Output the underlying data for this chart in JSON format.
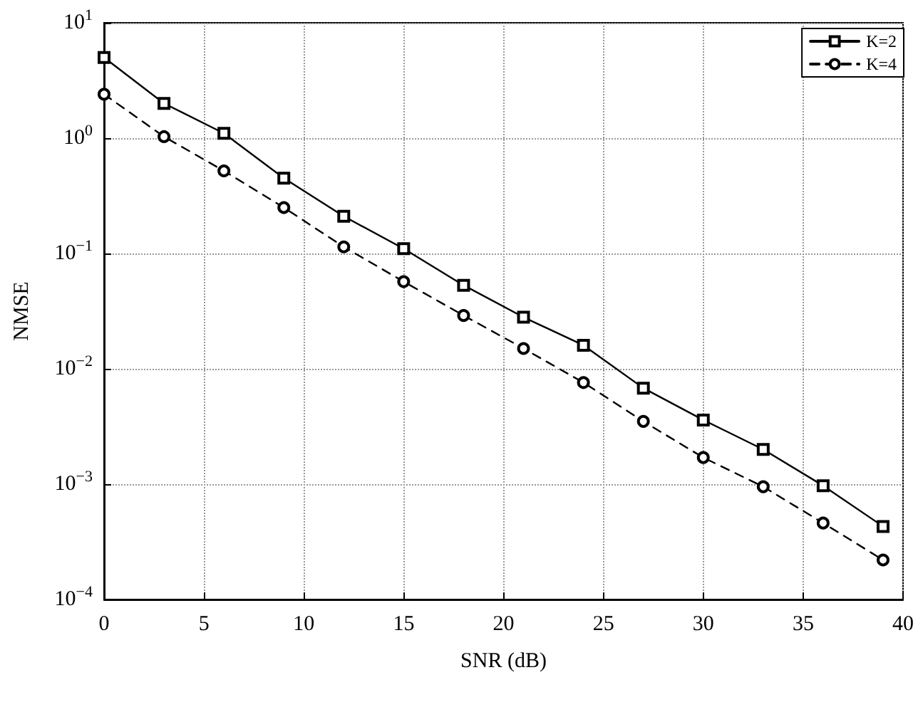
{
  "chart_data": {
    "type": "line",
    "xlabel": "SNR (dB)",
    "ylabel": "NMSE",
    "x": [
      0,
      3,
      6,
      9,
      12,
      15,
      18,
      21,
      24,
      27,
      30,
      33,
      36,
      39
    ],
    "series": [
      {
        "name": "K=2",
        "color": "#000000",
        "marker": "square",
        "line_style": "solid",
        "values": [
          5,
          2,
          1.1,
          0.45,
          0.21,
          0.11,
          0.053,
          0.028,
          0.016,
          0.0068,
          0.0036,
          0.002,
          0.00097,
          0.00043
        ]
      },
      {
        "name": "K=4",
        "color": "#000000",
        "marker": "circle",
        "line_style": "dashed",
        "values": [
          2.4,
          1.03,
          0.52,
          0.25,
          0.114,
          0.057,
          0.029,
          0.015,
          0.0076,
          0.0035,
          0.0017,
          0.00095,
          0.00046,
          0.00022
        ]
      }
    ],
    "xlim": [
      0,
      40
    ],
    "xticks": [
      0,
      5,
      10,
      15,
      20,
      25,
      30,
      35,
      40
    ],
    "ylim": [
      0.0001,
      10
    ],
    "yticks": [
      {
        "value": 0.0001,
        "label": "10$^{−4}$"
      },
      {
        "value": 0.001,
        "label": "10$^{−3}$"
      },
      {
        "value": 0.01,
        "label": "10$^{−2}$"
      },
      {
        "value": 0.1,
        "label": "10$^{−1}$"
      },
      {
        "value": 1,
        "label": "10$^{0}$"
      },
      {
        "value": 10,
        "label": "10$^{1}$"
      }
    ],
    "log": "y",
    "grid": true,
    "legend": "top right"
  }
}
